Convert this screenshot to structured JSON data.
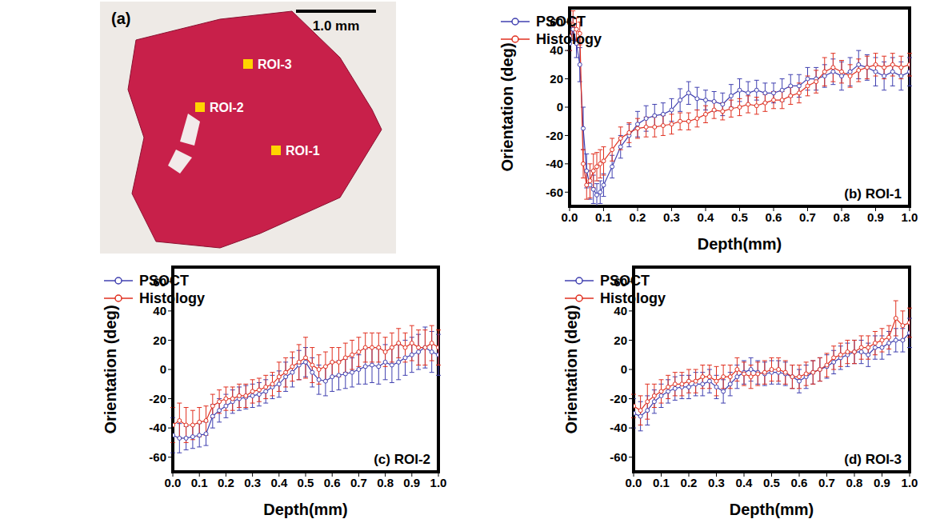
{
  "image": {
    "label": "(a)",
    "scale_bar": "1.0 mm",
    "rois": [
      "ROI-3",
      "ROI-2",
      "ROI-1"
    ]
  },
  "chart_data": [
    {
      "type": "line",
      "title": "(b) ROI-1",
      "x_label": "Depth(mm)",
      "y_label": "Orientation (deg)",
      "legend": "top-left",
      "xlim": [
        0,
        1
      ],
      "xticks": [
        {
          "value": 0,
          "label": "0.0"
        },
        0.1,
        0.2,
        0.3,
        0.4,
        0.5,
        0.6,
        0.7,
        0.8,
        0.9,
        {
          "value": 1,
          "label": "1.0"
        }
      ],
      "ylim": [
        -70,
        70
      ],
      "yticks": [
        -60,
        -40,
        -20,
        0,
        20,
        40,
        60
      ],
      "x": [
        0,
        0.01,
        0.02,
        0.03,
        0.04,
        0.05,
        0.06,
        0.07,
        0.08,
        0.09,
        0.1,
        0.125,
        0.15,
        0.175,
        0.2,
        0.225,
        0.25,
        0.275,
        0.3,
        0.325,
        0.35,
        0.375,
        0.4,
        0.425,
        0.45,
        0.475,
        0.5,
        0.525,
        0.55,
        0.575,
        0.6,
        0.625,
        0.65,
        0.675,
        0.7,
        0.725,
        0.75,
        0.775,
        0.8,
        0.825,
        0.85,
        0.875,
        0.9,
        0.925,
        0.95,
        0.975,
        1
      ],
      "series": [
        {
          "name": "PSOCT",
          "color": "#4040b0",
          "marker": "circle",
          "line_style": "solid",
          "values": [
            45,
            55,
            45,
            30,
            -15,
            -45,
            -55,
            -58,
            -62,
            -60,
            -55,
            -42,
            -28,
            -20,
            -12,
            -8,
            -6,
            -5,
            -2,
            5,
            10,
            6,
            5,
            4,
            2,
            8,
            12,
            10,
            12,
            10,
            10,
            12,
            15,
            15,
            20,
            20,
            22,
            25,
            22,
            25,
            30,
            28,
            25,
            22,
            25,
            22,
            25
          ],
          "errors": [
            5,
            8,
            10,
            12,
            15,
            12,
            10,
            10,
            8,
            8,
            8,
            8,
            8,
            8,
            9,
            9,
            8,
            8,
            8,
            8,
            8,
            8,
            7,
            7,
            8,
            8,
            8,
            8,
            7,
            7,
            7,
            8,
            8,
            8,
            8,
            8,
            8,
            9,
            10,
            10,
            10,
            9,
            10,
            10,
            10,
            10,
            10
          ]
        },
        {
          "name": "Histology",
          "color": "#e03020",
          "marker": "circle",
          "line_style": "solid",
          "values": [
            50,
            58,
            55,
            52,
            -40,
            -55,
            -52,
            -45,
            -42,
            -40,
            -38,
            -30,
            -22,
            -18,
            -15,
            -14,
            -14,
            -13,
            -12,
            -10,
            -10,
            -8,
            -5,
            -2,
            -3,
            -1,
            0,
            2,
            1,
            3,
            5,
            5,
            8,
            10,
            15,
            18,
            25,
            28,
            25,
            22,
            26,
            28,
            30,
            28,
            30,
            28,
            30
          ],
          "errors": [
            10,
            10,
            8,
            8,
            10,
            10,
            12,
            12,
            10,
            10,
            10,
            8,
            8,
            7,
            7,
            7,
            7,
            7,
            7,
            6,
            6,
            6,
            6,
            6,
            6,
            6,
            6,
            6,
            6,
            6,
            6,
            6,
            6,
            7,
            7,
            8,
            10,
            10,
            8,
            8,
            8,
            8,
            8,
            8,
            8,
            8,
            8
          ]
        }
      ]
    },
    {
      "type": "line",
      "title": "(c) ROI-2",
      "x_label": "Depth(mm)",
      "y_label": "Orientation (deg)",
      "legend": "top-left",
      "xlim": [
        0,
        1
      ],
      "xticks": [
        {
          "value": 0,
          "label": "0.0"
        },
        0.1,
        0.2,
        0.3,
        0.4,
        0.5,
        0.6,
        0.7,
        0.8,
        0.9,
        {
          "value": 1,
          "label": "1.0"
        }
      ],
      "ylim": [
        -70,
        70
      ],
      "yticks": [
        -60,
        -40,
        -20,
        0,
        20,
        40,
        60
      ],
      "x": [
        0,
        0.025,
        0.05,
        0.075,
        0.1,
        0.125,
        0.15,
        0.175,
        0.2,
        0.225,
        0.25,
        0.275,
        0.3,
        0.325,
        0.35,
        0.375,
        0.4,
        0.425,
        0.45,
        0.475,
        0.5,
        0.525,
        0.55,
        0.575,
        0.6,
        0.625,
        0.65,
        0.675,
        0.7,
        0.725,
        0.75,
        0.775,
        0.8,
        0.825,
        0.85,
        0.875,
        0.9,
        0.925,
        0.95,
        0.975,
        1
      ],
      "series": [
        {
          "name": "PSOCT",
          "color": "#4040b0",
          "marker": "circle",
          "line_style": "solid",
          "values": [
            -45,
            -47,
            -47,
            -46,
            -45,
            -44,
            -32,
            -28,
            -25,
            -22,
            -20,
            -19,
            -18,
            -17,
            -15,
            -12,
            -10,
            -5,
            -2,
            3,
            5,
            -2,
            -7,
            -8,
            -5,
            -4,
            -3,
            -2,
            0,
            2,
            3,
            2,
            5,
            3,
            5,
            8,
            10,
            12,
            15,
            12,
            10
          ],
          "errors": [
            12,
            10,
            8,
            8,
            8,
            8,
            8,
            8,
            8,
            8,
            8,
            8,
            8,
            8,
            8,
            8,
            9,
            10,
            10,
            10,
            10,
            10,
            10,
            10,
            10,
            10,
            10,
            10,
            10,
            12,
            12,
            12,
            12,
            12,
            12,
            12,
            12,
            12,
            14,
            14,
            14
          ]
        },
        {
          "name": "Histology",
          "color": "#e03020",
          "marker": "circle",
          "line_style": "solid",
          "values": [
            -38,
            -35,
            -38,
            -38,
            -36,
            -35,
            -25,
            -22,
            -20,
            -20,
            -18,
            -18,
            -15,
            -14,
            -12,
            -10,
            -5,
            -2,
            2,
            5,
            8,
            3,
            0,
            2,
            5,
            5,
            8,
            10,
            12,
            15,
            15,
            15,
            12,
            15,
            18,
            15,
            18,
            15,
            15,
            18,
            15
          ],
          "errors": [
            12,
            12,
            12,
            10,
            10,
            10,
            8,
            8,
            8,
            8,
            8,
            8,
            8,
            8,
            8,
            8,
            10,
            10,
            10,
            12,
            14,
            12,
            10,
            10,
            10,
            10,
            10,
            10,
            10,
            10,
            10,
            10,
            10,
            10,
            10,
            10,
            12,
            12,
            12,
            12,
            12
          ]
        }
      ]
    },
    {
      "type": "line",
      "title": "(d) ROI-3",
      "x_label": "Depth(mm)",
      "y_label": "Orientation (deg)",
      "legend": "top-left",
      "xlim": [
        0,
        1
      ],
      "xticks": [
        {
          "value": 0,
          "label": "0.0"
        },
        0.1,
        0.2,
        0.3,
        0.4,
        0.5,
        0.6,
        0.7,
        0.8,
        0.9,
        {
          "value": 1,
          "label": "1.0"
        }
      ],
      "ylim": [
        -70,
        70
      ],
      "yticks": [
        -60,
        -40,
        -20,
        0,
        20,
        40,
        60
      ],
      "x": [
        0,
        0.025,
        0.05,
        0.075,
        0.1,
        0.125,
        0.15,
        0.175,
        0.2,
        0.225,
        0.25,
        0.275,
        0.3,
        0.325,
        0.35,
        0.375,
        0.4,
        0.425,
        0.45,
        0.475,
        0.5,
        0.525,
        0.55,
        0.575,
        0.6,
        0.625,
        0.65,
        0.675,
        0.7,
        0.725,
        0.75,
        0.775,
        0.8,
        0.825,
        0.85,
        0.875,
        0.9,
        0.925,
        0.95,
        0.975,
        1
      ],
      "series": [
        {
          "name": "PSOCT",
          "color": "#4040b0",
          "marker": "circle",
          "line_style": "solid",
          "values": [
            -30,
            -32,
            -28,
            -22,
            -18,
            -15,
            -13,
            -12,
            -12,
            -10,
            -10,
            -8,
            -12,
            -15,
            -10,
            -5,
            -2,
            0,
            -2,
            -3,
            -2,
            -2,
            -3,
            -5,
            -8,
            -5,
            -2,
            0,
            2,
            5,
            8,
            10,
            12,
            12,
            10,
            15,
            15,
            18,
            20,
            20,
            25
          ],
          "errors": [
            10,
            10,
            10,
            8,
            8,
            8,
            8,
            8,
            8,
            8,
            8,
            8,
            8,
            8,
            8,
            8,
            8,
            8,
            8,
            8,
            8,
            8,
            8,
            8,
            8,
            8,
            8,
            8,
            8,
            8,
            8,
            8,
            8,
            8,
            8,
            8,
            8,
            8,
            8,
            8,
            10
          ]
        },
        {
          "name": "Histology",
          "color": "#e03020",
          "marker": "circle",
          "line_style": "solid",
          "values": [
            -25,
            -28,
            -22,
            -18,
            -15,
            -12,
            -10,
            -10,
            -8,
            -8,
            -5,
            -5,
            -8,
            -5,
            -5,
            0,
            -3,
            -5,
            -3,
            -2,
            0,
            0,
            -2,
            -5,
            -5,
            -3,
            -2,
            0,
            3,
            8,
            10,
            12,
            12,
            15,
            15,
            18,
            20,
            22,
            35,
            30,
            32
          ],
          "errors": [
            8,
            10,
            12,
            8,
            8,
            8,
            8,
            8,
            8,
            8,
            8,
            8,
            10,
            8,
            8,
            8,
            8,
            8,
            8,
            8,
            8,
            8,
            8,
            8,
            8,
            8,
            8,
            8,
            8,
            8,
            8,
            8,
            8,
            8,
            8,
            8,
            8,
            8,
            12,
            10,
            10
          ]
        }
      ]
    }
  ]
}
